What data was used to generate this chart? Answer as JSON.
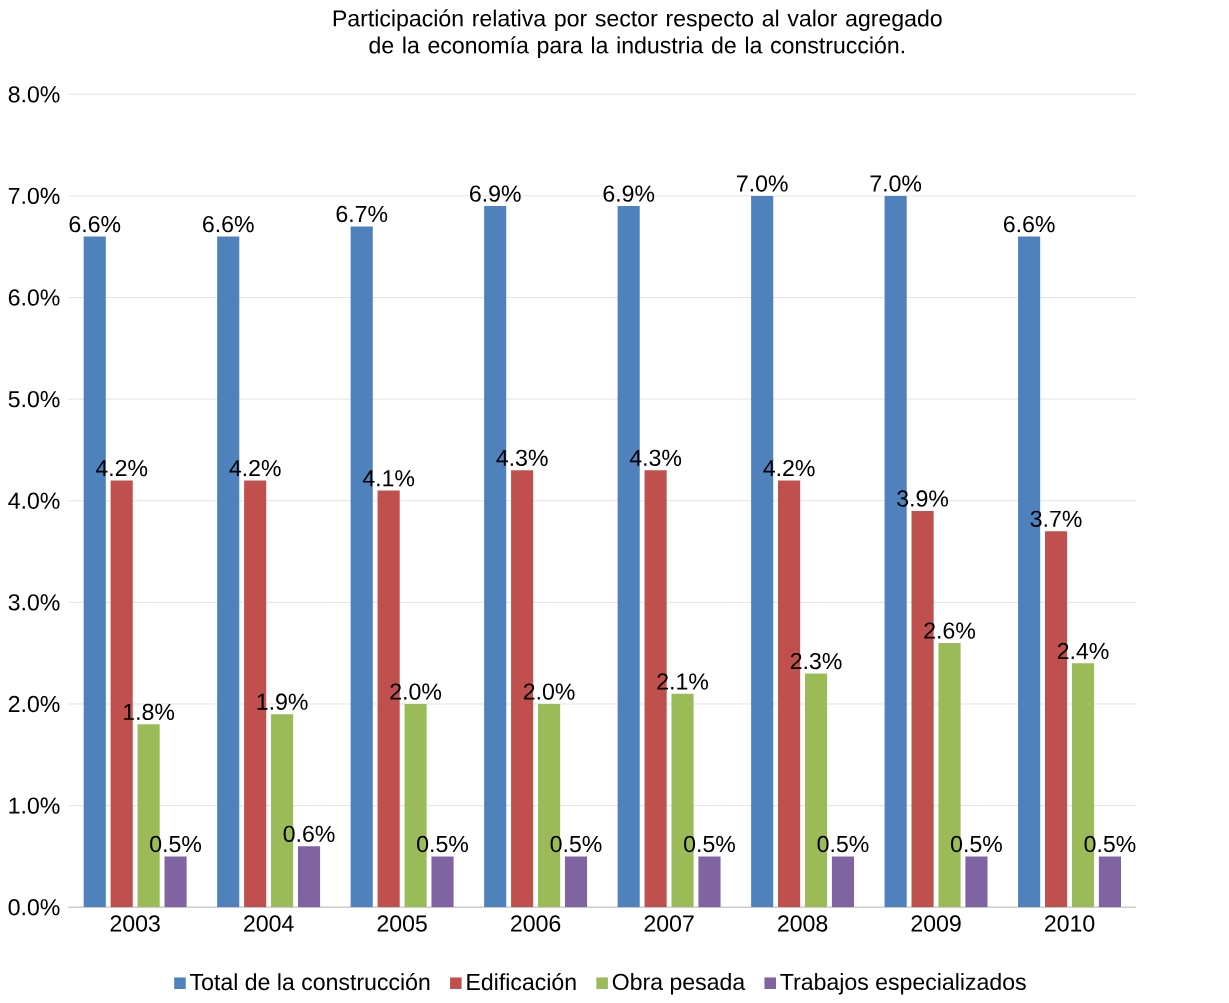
{
  "chart_data": {
    "type": "bar",
    "title": "Participación relativa por sector respecto al valor agregado de la economía para la industria de la construcción.",
    "categories": [
      "2003",
      "2004",
      "2005",
      "2006",
      "2007",
      "2008",
      "2009",
      "2010"
    ],
    "series": [
      {
        "name": "Total de la construcción",
        "color": "#4f81bd",
        "values": [
          6.6,
          6.6,
          6.7,
          6.9,
          6.9,
          7.0,
          7.0,
          6.6
        ],
        "value_labels": [
          "6.6%",
          "6.6%",
          "6.7%",
          "6.9%",
          "6.9%",
          "7.0%",
          "7.0%",
          "6.6%"
        ]
      },
      {
        "name": "Edificación",
        "color": "#c0504d",
        "values": [
          4.2,
          4.2,
          4.1,
          4.3,
          4.3,
          4.2,
          3.9,
          3.7
        ],
        "value_labels": [
          "4.2%",
          "4.2%",
          "4.1%",
          "4.3%",
          "4.3%",
          "4.2%",
          "3.9%",
          "3.7%"
        ]
      },
      {
        "name": "Obra pesada",
        "color": "#9bbb59",
        "values": [
          1.8,
          1.9,
          2.0,
          2.0,
          2.1,
          2.3,
          2.6,
          2.4
        ],
        "value_labels": [
          "1.8%",
          "1.9%",
          "2.0%",
          "2.0%",
          "2.1%",
          "2.3%",
          "2.6%",
          "2.4%"
        ]
      },
      {
        "name": "Trabajos especializados",
        "color": "#8064a2",
        "values": [
          0.5,
          0.6,
          0.5,
          0.5,
          0.5,
          0.5,
          0.5,
          0.5
        ],
        "value_labels": [
          "0.5%",
          "0.6%",
          "0.5%",
          "0.5%",
          "0.5%",
          "0.5%",
          "0.5%",
          "0.5%"
        ]
      }
    ],
    "ylim": [
      0,
      8
    ],
    "yticks": [
      {
        "value": 0,
        "label": "0.0%"
      },
      {
        "value": 1,
        "label": "1.0%"
      },
      {
        "value": 2,
        "label": "2.0%"
      },
      {
        "value": 3,
        "label": "3.0%"
      },
      {
        "value": 4,
        "label": "4.0%"
      },
      {
        "value": 5,
        "label": "5.0%"
      },
      {
        "value": 6,
        "label": "6.0%"
      },
      {
        "value": 7,
        "label": "7.0%"
      },
      {
        "value": 8,
        "label": "8.0%"
      }
    ],
    "grid": "y",
    "legend": "bottom"
  }
}
